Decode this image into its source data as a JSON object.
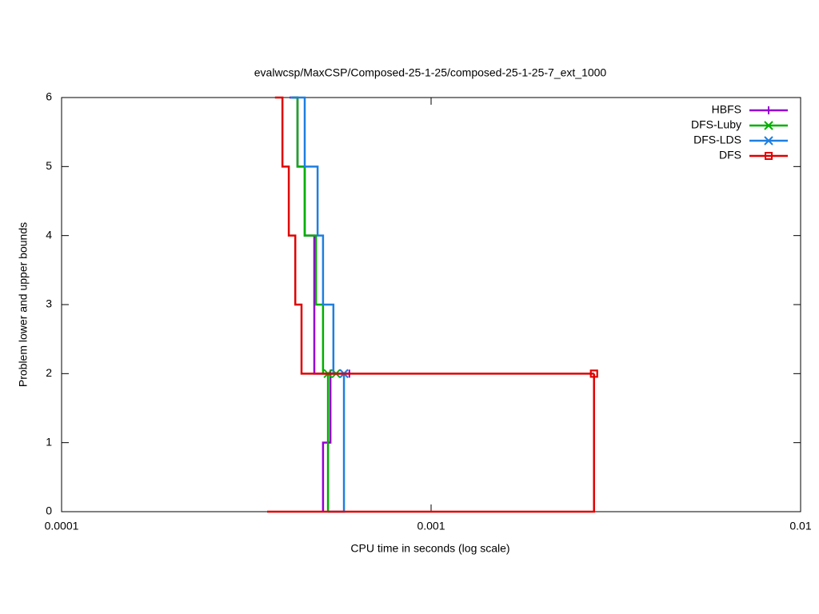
{
  "chart_data": {
    "type": "step-line",
    "title": "evalwcsp/MaxCSP/Composed-25-1-25/composed-25-1-25-7_ext_1000",
    "x_label": "CPU time in seconds (log scale)",
    "y_label": "Problem lower and upper bounds",
    "xscale": "log",
    "xlim": [
      0.0001,
      0.01
    ],
    "xticks": [
      0.0001,
      0.001,
      0.01
    ],
    "ylim": [
      0,
      6
    ],
    "yticks": [
      0,
      1,
      2,
      3,
      4,
      5,
      6
    ],
    "legend": "top-right",
    "series": [
      {
        "name": "HBFS",
        "color": "#9400d3",
        "marker": "plus",
        "x": [
          0.000414,
          0.000435,
          0.000435,
          0.000455,
          0.000455,
          0.000483,
          0.000483,
          0.000601,
          null,
          0.00051,
          0.00051,
          0.000534,
          0.000534
        ],
        "values": [
          6,
          6,
          5,
          5,
          4,
          4,
          2,
          2,
          null,
          0,
          1,
          1,
          2
        ]
      },
      {
        "name": "DFS-Luby",
        "color": "#00b000",
        "marker": "cross",
        "x": [
          0.00042,
          0.000435,
          0.000435,
          0.000455,
          0.000455,
          0.000488,
          0.000488,
          0.00051,
          0.00051,
          0.000553,
          null,
          0.000526,
          0.000526
        ],
        "values": [
          6,
          6,
          5,
          5,
          4,
          4,
          3,
          3,
          2,
          2,
          null,
          0,
          2
        ]
      },
      {
        "name": "DFS-LDS",
        "color": "#1e7fe0",
        "marker": "star",
        "x": [
          0.000416,
          0.000455,
          0.000455,
          0.000493,
          0.000493,
          0.00051,
          0.00051,
          0.000544,
          0.000544,
          0.000581,
          null,
          0.000526,
          0.000581,
          0.000581
        ],
        "values": [
          6,
          6,
          5,
          5,
          4,
          4,
          3,
          3,
          2,
          2,
          null,
          0,
          0,
          2
        ]
      },
      {
        "name": "DFS",
        "color": "#e00000",
        "marker": "square",
        "x": [
          0.000378,
          0.000396,
          0.000396,
          0.000412,
          0.000412,
          0.000429,
          0.000429,
          0.000446,
          0.000446,
          0.00276,
          null,
          0.00036,
          0.00276,
          0.00276
        ],
        "values": [
          6,
          6,
          5,
          5,
          4,
          4,
          3,
          3,
          2,
          2,
          null,
          0,
          0,
          2
        ]
      }
    ]
  }
}
